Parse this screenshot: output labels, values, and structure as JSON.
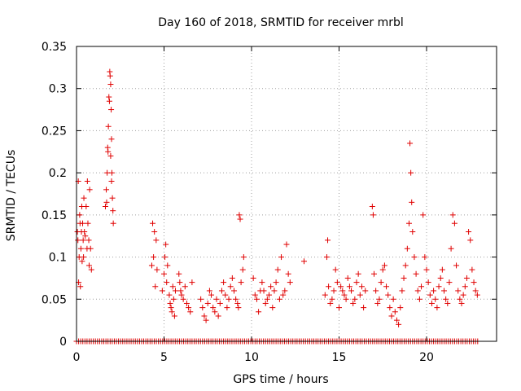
{
  "chart_data": {
    "type": "scatter",
    "title": "Day 160 of 2018, SRMTID for receiver mrbl",
    "xlabel": "GPS time / hours",
    "ylabel": "SRMTID / TECUs",
    "xlim": [
      0,
      24
    ],
    "ylim": [
      0,
      0.35
    ],
    "xticks": [
      0,
      5,
      10,
      15,
      20
    ],
    "xtick_labels": [
      "0",
      "5",
      "10",
      "15",
      "20"
    ],
    "yticks": [
      0,
      0.05,
      0.1,
      0.15,
      0.2,
      0.25,
      0.3,
      0.35
    ],
    "ytick_labels": [
      "0",
      "0.05",
      "0.1",
      "0.15",
      "0.2",
      "0.25",
      "0.3",
      "0.35"
    ],
    "grid": true,
    "marker": "+",
    "color": "#e00000",
    "series": [
      {
        "name": "SRMTID",
        "points": [
          [
            0.05,
            0.13
          ],
          [
            0.08,
            0.12
          ],
          [
            0.1,
            0.19
          ],
          [
            0.12,
            0.07
          ],
          [
            0.15,
            0.1
          ],
          [
            0.18,
            0.15
          ],
          [
            0.2,
            0.14
          ],
          [
            0.22,
            0.065
          ],
          [
            0.25,
            0.11
          ],
          [
            0.28,
            0.13
          ],
          [
            0.3,
            0.16
          ],
          [
            0.32,
            0.095
          ],
          [
            0.35,
            0.14
          ],
          [
            0.38,
            0.12
          ],
          [
            0.4,
            0.1
          ],
          [
            0.42,
            0.17
          ],
          [
            0.45,
            0.13
          ],
          [
            0.5,
            0.125
          ],
          [
            0.55,
            0.16
          ],
          [
            0.6,
            0.11
          ],
          [
            0.62,
            0.19
          ],
          [
            0.65,
            0.14
          ],
          [
            0.7,
            0.12
          ],
          [
            0.72,
            0.09
          ],
          [
            0.75,
            0.18
          ],
          [
            0.8,
            0.11
          ],
          [
            0.85,
            0.085
          ],
          [
            1.65,
            0.16
          ],
          [
            1.7,
            0.18
          ],
          [
            1.75,
            0.2
          ],
          [
            1.78,
            0.23
          ],
          [
            1.8,
            0.225
          ],
          [
            1.82,
            0.255
          ],
          [
            1.85,
            0.29
          ],
          [
            1.88,
            0.285
          ],
          [
            1.9,
            0.32
          ],
          [
            1.92,
            0.315
          ],
          [
            1.95,
            0.305
          ],
          [
            1.98,
            0.275
          ],
          [
            2.0,
            0.24
          ],
          [
            2.02,
            0.2
          ],
          [
            2.05,
            0.17
          ],
          [
            2.08,
            0.155
          ],
          [
            2.1,
            0.14
          ],
          [
            1.72,
            0.165
          ],
          [
            1.95,
            0.22
          ],
          [
            2.0,
            0.19
          ],
          [
            4.3,
            0.09
          ],
          [
            4.35,
            0.14
          ],
          [
            4.4,
            0.1
          ],
          [
            4.45,
            0.13
          ],
          [
            4.5,
            0.065
          ],
          [
            4.55,
            0.12
          ],
          [
            4.6,
            0.085
          ],
          [
            4.9,
            0.06
          ],
          [
            5.0,
            0.08
          ],
          [
            5.05,
            0.1
          ],
          [
            5.1,
            0.115
          ],
          [
            5.15,
            0.07
          ],
          [
            5.2,
            0.09
          ],
          [
            5.3,
            0.055
          ],
          [
            5.35,
            0.045
          ],
          [
            5.4,
            0.04
          ],
          [
            5.45,
            0.035
          ],
          [
            5.5,
            0.065
          ],
          [
            5.55,
            0.05
          ],
          [
            5.6,
            0.03
          ],
          [
            5.65,
            0.06
          ],
          [
            5.85,
            0.08
          ],
          [
            5.9,
            0.07
          ],
          [
            5.95,
            0.06
          ],
          [
            6.0,
            0.055
          ],
          [
            6.1,
            0.05
          ],
          [
            6.2,
            0.065
          ],
          [
            6.3,
            0.045
          ],
          [
            6.4,
            0.04
          ],
          [
            6.5,
            0.035
          ],
          [
            6.6,
            0.07
          ],
          [
            7.1,
            0.05
          ],
          [
            7.2,
            0.04
          ],
          [
            7.3,
            0.03
          ],
          [
            7.4,
            0.025
          ],
          [
            7.5,
            0.045
          ],
          [
            7.6,
            0.06
          ],
          [
            7.7,
            0.055
          ],
          [
            7.8,
            0.04
          ],
          [
            7.9,
            0.035
          ],
          [
            8.0,
            0.05
          ],
          [
            8.1,
            0.03
          ],
          [
            8.2,
            0.045
          ],
          [
            8.3,
            0.06
          ],
          [
            8.4,
            0.07
          ],
          [
            8.5,
            0.055
          ],
          [
            8.6,
            0.04
          ],
          [
            8.7,
            0.05
          ],
          [
            8.8,
            0.065
          ],
          [
            8.9,
            0.075
          ],
          [
            9.0,
            0.06
          ],
          [
            9.1,
            0.05
          ],
          [
            9.2,
            0.045
          ],
          [
            9.25,
            0.04
          ],
          [
            9.3,
            0.15
          ],
          [
            9.35,
            0.145
          ],
          [
            9.4,
            0.07
          ],
          [
            9.5,
            0.085
          ],
          [
            9.55,
            0.1
          ],
          [
            10.1,
            0.075
          ],
          [
            10.2,
            0.055
          ],
          [
            10.3,
            0.05
          ],
          [
            10.4,
            0.035
          ],
          [
            10.5,
            0.06
          ],
          [
            10.6,
            0.07
          ],
          [
            10.7,
            0.06
          ],
          [
            10.8,
            0.045
          ],
          [
            10.9,
            0.05
          ],
          [
            11.0,
            0.055
          ],
          [
            11.1,
            0.065
          ],
          [
            11.2,
            0.04
          ],
          [
            11.3,
            0.06
          ],
          [
            11.4,
            0.07
          ],
          [
            11.5,
            0.085
          ],
          [
            11.6,
            0.05
          ],
          [
            11.7,
            0.1
          ],
          [
            11.8,
            0.055
          ],
          [
            11.9,
            0.06
          ],
          [
            12.0,
            0.115
          ],
          [
            12.1,
            0.08
          ],
          [
            12.2,
            0.07
          ],
          [
            13.0,
            0.095
          ],
          [
            14.2,
            0.055
          ],
          [
            14.3,
            0.1
          ],
          [
            14.35,
            0.12
          ],
          [
            14.4,
            0.065
          ],
          [
            14.5,
            0.045
          ],
          [
            14.6,
            0.05
          ],
          [
            14.7,
            0.06
          ],
          [
            14.8,
            0.085
          ],
          [
            14.9,
            0.07
          ],
          [
            15.0,
            0.04
          ],
          [
            15.1,
            0.065
          ],
          [
            15.2,
            0.06
          ],
          [
            15.3,
            0.055
          ],
          [
            15.4,
            0.05
          ],
          [
            15.5,
            0.075
          ],
          [
            15.6,
            0.065
          ],
          [
            15.7,
            0.06
          ],
          [
            15.8,
            0.045
          ],
          [
            15.9,
            0.05
          ],
          [
            16.0,
            0.07
          ],
          [
            16.1,
            0.08
          ],
          [
            16.2,
            0.055
          ],
          [
            16.3,
            0.065
          ],
          [
            16.4,
            0.04
          ],
          [
            16.5,
            0.06
          ],
          [
            16.9,
            0.16
          ],
          [
            16.95,
            0.15
          ],
          [
            17.0,
            0.08
          ],
          [
            17.1,
            0.06
          ],
          [
            17.2,
            0.045
          ],
          [
            17.3,
            0.05
          ],
          [
            17.4,
            0.07
          ],
          [
            17.5,
            0.085
          ],
          [
            17.6,
            0.09
          ],
          [
            17.7,
            0.065
          ],
          [
            17.8,
            0.055
          ],
          [
            17.9,
            0.04
          ],
          [
            18.0,
            0.03
          ],
          [
            18.1,
            0.05
          ],
          [
            18.2,
            0.035
          ],
          [
            18.3,
            0.025
          ],
          [
            18.4,
            0.02
          ],
          [
            18.5,
            0.04
          ],
          [
            18.6,
            0.06
          ],
          [
            18.7,
            0.075
          ],
          [
            18.8,
            0.09
          ],
          [
            18.9,
            0.11
          ],
          [
            19.0,
            0.14
          ],
          [
            19.05,
            0.235
          ],
          [
            19.1,
            0.2
          ],
          [
            19.15,
            0.165
          ],
          [
            19.2,
            0.13
          ],
          [
            19.3,
            0.1
          ],
          [
            19.4,
            0.08
          ],
          [
            19.5,
            0.06
          ],
          [
            19.6,
            0.05
          ],
          [
            19.7,
            0.065
          ],
          [
            19.8,
            0.15
          ],
          [
            19.9,
            0.1
          ],
          [
            20.0,
            0.085
          ],
          [
            20.1,
            0.07
          ],
          [
            20.2,
            0.055
          ],
          [
            20.3,
            0.045
          ],
          [
            20.4,
            0.06
          ],
          [
            20.5,
            0.05
          ],
          [
            20.6,
            0.04
          ],
          [
            20.7,
            0.065
          ],
          [
            20.8,
            0.075
          ],
          [
            20.9,
            0.085
          ],
          [
            21.0,
            0.06
          ],
          [
            21.1,
            0.05
          ],
          [
            21.2,
            0.045
          ],
          [
            21.3,
            0.07
          ],
          [
            21.4,
            0.11
          ],
          [
            21.5,
            0.15
          ],
          [
            21.6,
            0.14
          ],
          [
            21.7,
            0.09
          ],
          [
            21.8,
            0.06
          ],
          [
            21.9,
            0.05
          ],
          [
            22.0,
            0.045
          ],
          [
            22.1,
            0.055
          ],
          [
            22.2,
            0.065
          ],
          [
            22.3,
            0.075
          ],
          [
            22.4,
            0.13
          ],
          [
            22.5,
            0.12
          ],
          [
            22.6,
            0.085
          ],
          [
            22.7,
            0.07
          ],
          [
            22.8,
            0.06
          ],
          [
            22.9,
            0.055
          ]
        ],
        "zero_band": [
          0,
          23
        ]
      }
    ]
  }
}
